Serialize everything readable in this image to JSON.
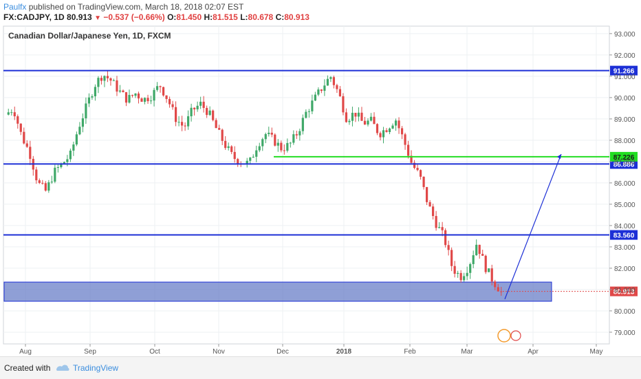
{
  "header": {
    "author": "Paulfx",
    "published_text": "published on TradingView.com, March 18, 2018 02:07 EST"
  },
  "quote": {
    "symbol_interval": "FX:CADJPY, 1D",
    "last": "80.913",
    "arrow": "▼",
    "change": "−0.537 (−0.66%)",
    "o_label": "O:",
    "o": "81.450",
    "h_label": "H:",
    "h": "81.515",
    "l_label": "L:",
    "l": "80.678",
    "c_label": "C:",
    "c": "80.913"
  },
  "footer": {
    "created_with": "Created with",
    "brand": "TradingView"
  },
  "chart_data": {
    "type": "candlestick",
    "title": "Canadian Dollar/Japanese Yen, 1D, FXCM",
    "y_ticks": [
      "79.000",
      "80.000",
      "81.000",
      "82.000",
      "83.000",
      "84.000",
      "85.000",
      "86.000",
      "87.000",
      "88.000",
      "89.000",
      "90.000",
      "91.000",
      "92.000",
      "93.000"
    ],
    "ylim": [
      78.3,
      93.4
    ],
    "x_ticks": [
      "Aug",
      "Sep",
      "Oct",
      "Nov",
      "Dec",
      "2018",
      "Feb",
      "Mar",
      "Apr",
      "May"
    ],
    "bull_color": "#3fa868",
    "bear_color": "#e04848",
    "level_color": "#1c2fd6",
    "target_color": "#22dd22",
    "zone_color": "#6a7fc8",
    "price_color": "#e04848",
    "horizontal_levels": [
      {
        "label": "91.266",
        "value": 91.266
      },
      {
        "label": "86.886",
        "value": 86.886
      },
      {
        "label": "83.560",
        "value": 83.56
      }
    ],
    "target_level": {
      "label": "87.226",
      "value": 87.226
    },
    "current_price": {
      "label": "80.913",
      "value": 80.913
    },
    "support_zone": {
      "low": 80.45,
      "high": 81.35
    },
    "projection": {
      "from_value": 80.55,
      "to_value": 87.35
    },
    "price_path": [
      89.2,
      89.5,
      88.2,
      87.4,
      86.0,
      85.6,
      86.5,
      86.9,
      87.3,
      88.6,
      89.6,
      90.6,
      91.1,
      90.8,
      90.3,
      89.9,
      90.2,
      89.9,
      90.1,
      90.6,
      89.9,
      89.0,
      88.6,
      89.4,
      89.7,
      89.3,
      88.5,
      87.8,
      87.2,
      87.0,
      86.9,
      87.8,
      88.3,
      88.0,
      87.6,
      87.8,
      88.4,
      89.3,
      89.9,
      90.5,
      91.0,
      90.2,
      89.0,
      89.3,
      88.8,
      88.9,
      88.3,
      88.6,
      89.0,
      88.0,
      86.9,
      86.3,
      85.0,
      84.1,
      83.4,
      82.0,
      81.6,
      82.1,
      83.2,
      82.1,
      81.4,
      80.91
    ]
  }
}
